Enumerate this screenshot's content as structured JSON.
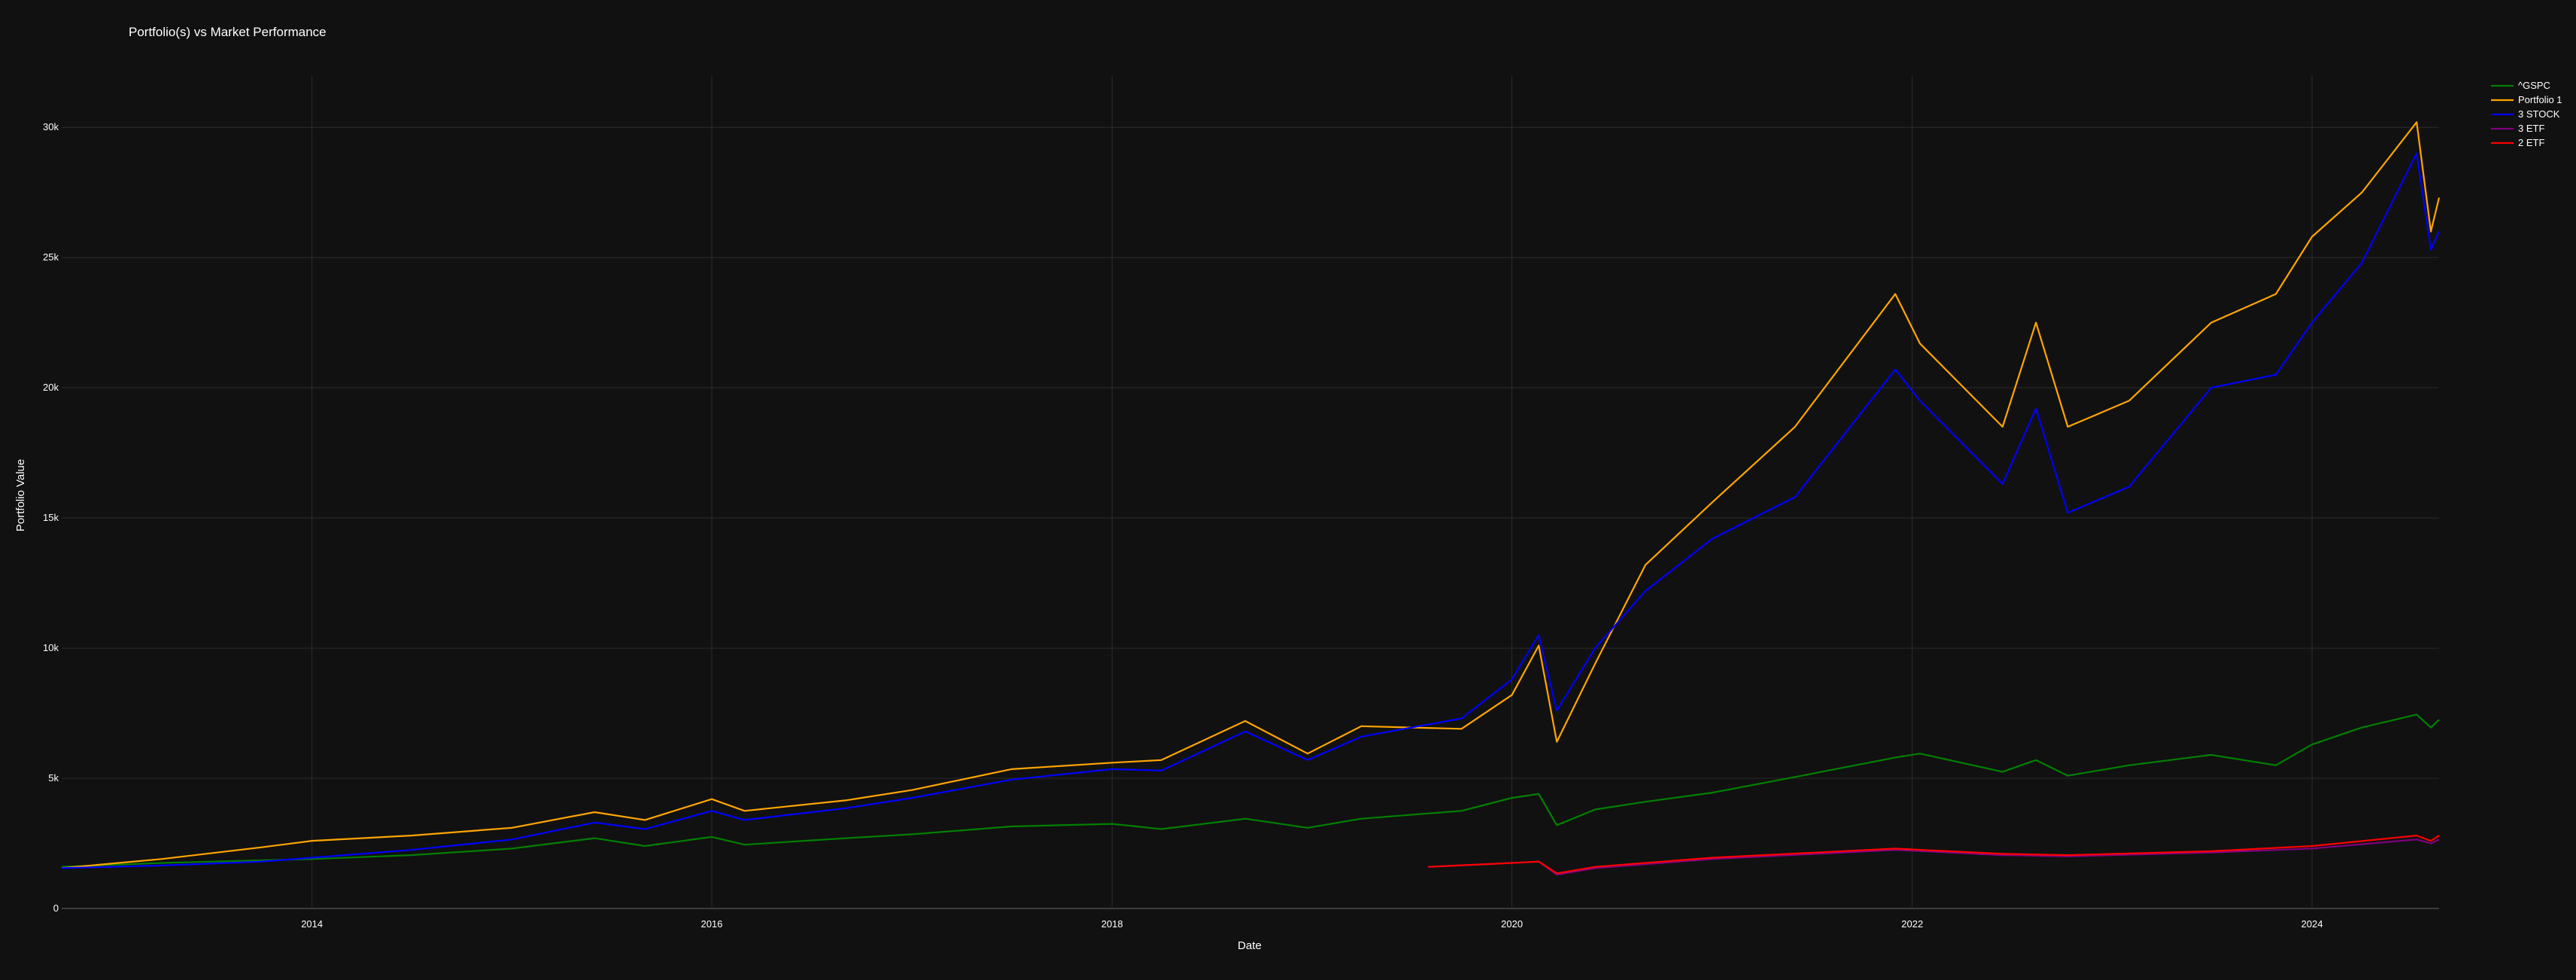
{
  "chart_data": {
    "type": "line",
    "title": "Portfolio(s) vs Market Performance",
    "xlabel": "Date",
    "ylabel": "Portfolio Value",
    "xlim": [
      "2012-10-01",
      "2024-08-20"
    ],
    "ylim": [
      0,
      32000
    ],
    "grid": true,
    "legend_position": "top-right",
    "x_ticks": [
      {
        "value": "2014-01-01",
        "label": "2014"
      },
      {
        "value": "2016-01-01",
        "label": "2016"
      },
      {
        "value": "2018-01-01",
        "label": "2018"
      },
      {
        "value": "2020-01-01",
        "label": "2020"
      },
      {
        "value": "2022-01-01",
        "label": "2022"
      },
      {
        "value": "2024-01-01",
        "label": "2024"
      }
    ],
    "y_ticks": [
      {
        "value": 0,
        "label": "0"
      },
      {
        "value": 5000,
        "label": "5k"
      },
      {
        "value": 10000,
        "label": "10k"
      },
      {
        "value": 15000,
        "label": "15k"
      },
      {
        "value": 20000,
        "label": "20k"
      },
      {
        "value": 25000,
        "label": "25k"
      },
      {
        "value": 30000,
        "label": "30k"
      }
    ],
    "series": [
      {
        "name": "^GSPC",
        "color": "#008000",
        "points": [
          [
            "2012-10-01",
            1600
          ],
          [
            "2013-04-01",
            1750
          ],
          [
            "2013-10-01",
            1850
          ],
          [
            "2014-01-01",
            1900
          ],
          [
            "2014-07-01",
            2050
          ],
          [
            "2015-01-01",
            2300
          ],
          [
            "2015-06-01",
            2700
          ],
          [
            "2015-09-01",
            2400
          ],
          [
            "2016-01-01",
            2750
          ],
          [
            "2016-03-01",
            2450
          ],
          [
            "2016-09-01",
            2700
          ],
          [
            "2017-01-01",
            2850
          ],
          [
            "2017-07-01",
            3150
          ],
          [
            "2018-01-01",
            3250
          ],
          [
            "2018-04-01",
            3050
          ],
          [
            "2018-09-01",
            3450
          ],
          [
            "2018-12-24",
            3100
          ],
          [
            "2019-04-01",
            3450
          ],
          [
            "2019-10-01",
            3750
          ],
          [
            "2020-01-01",
            4250
          ],
          [
            "2020-02-19",
            4400
          ],
          [
            "2020-03-23",
            3200
          ],
          [
            "2020-06-01",
            3800
          ],
          [
            "2020-09-01",
            4100
          ],
          [
            "2021-01-01",
            4450
          ],
          [
            "2021-06-01",
            5050
          ],
          [
            "2021-12-01",
            5800
          ],
          [
            "2022-01-15",
            5950
          ],
          [
            "2022-06-15",
            5250
          ],
          [
            "2022-08-15",
            5700
          ],
          [
            "2022-10-12",
            5100
          ],
          [
            "2023-02-01",
            5500
          ],
          [
            "2023-07-01",
            5900
          ],
          [
            "2023-10-27",
            5500
          ],
          [
            "2024-01-01",
            6300
          ],
          [
            "2024-04-01",
            6950
          ],
          [
            "2024-07-10",
            7450
          ],
          [
            "2024-08-05",
            6950
          ],
          [
            "2024-08-20",
            7250
          ]
        ]
      },
      {
        "name": "Portfolio 1",
        "color": "#ffa500",
        "points": [
          [
            "2012-10-01",
            1550
          ],
          [
            "2013-04-01",
            1900
          ],
          [
            "2013-10-01",
            2350
          ],
          [
            "2014-01-01",
            2600
          ],
          [
            "2014-07-01",
            2800
          ],
          [
            "2015-01-01",
            3100
          ],
          [
            "2015-06-01",
            3700
          ],
          [
            "2015-09-01",
            3400
          ],
          [
            "2016-01-01",
            4200
          ],
          [
            "2016-03-01",
            3750
          ],
          [
            "2016-09-01",
            4150
          ],
          [
            "2017-01-01",
            4550
          ],
          [
            "2017-07-01",
            5350
          ],
          [
            "2018-01-01",
            5600
          ],
          [
            "2018-04-01",
            5700
          ],
          [
            "2018-09-01",
            7200
          ],
          [
            "2018-12-24",
            5950
          ],
          [
            "2019-04-01",
            7000
          ],
          [
            "2019-10-01",
            6900
          ],
          [
            "2020-01-01",
            8200
          ],
          [
            "2020-02-19",
            10100
          ],
          [
            "2020-03-23",
            6400
          ],
          [
            "2020-06-01",
            9400
          ],
          [
            "2020-09-01",
            13200
          ],
          [
            "2021-01-01",
            15600
          ],
          [
            "2021-06-01",
            18500
          ],
          [
            "2021-12-01",
            23600
          ],
          [
            "2022-01-15",
            21700
          ],
          [
            "2022-06-15",
            18500
          ],
          [
            "2022-08-15",
            22500
          ],
          [
            "2022-10-12",
            18500
          ],
          [
            "2023-02-01",
            19500
          ],
          [
            "2023-07-01",
            22500
          ],
          [
            "2023-10-27",
            23600
          ],
          [
            "2024-01-01",
            25800
          ],
          [
            "2024-04-01",
            27500
          ],
          [
            "2024-07-10",
            30200
          ],
          [
            "2024-08-05",
            26000
          ],
          [
            "2024-08-20",
            27300
          ]
        ]
      },
      {
        "name": "3 STOCK",
        "color": "#0000ff",
        "points": [
          [
            "2012-10-01",
            1550
          ],
          [
            "2013-04-01",
            1650
          ],
          [
            "2013-10-01",
            1800
          ],
          [
            "2014-01-01",
            1950
          ],
          [
            "2014-07-01",
            2250
          ],
          [
            "2015-01-01",
            2650
          ],
          [
            "2015-06-01",
            3300
          ],
          [
            "2015-09-01",
            3050
          ],
          [
            "2016-01-01",
            3750
          ],
          [
            "2016-03-01",
            3400
          ],
          [
            "2016-09-01",
            3850
          ],
          [
            "2017-01-01",
            4250
          ],
          [
            "2017-07-01",
            4950
          ],
          [
            "2018-01-01",
            5350
          ],
          [
            "2018-04-01",
            5300
          ],
          [
            "2018-09-01",
            6800
          ],
          [
            "2018-12-24",
            5700
          ],
          [
            "2019-04-01",
            6600
          ],
          [
            "2019-10-01",
            7300
          ],
          [
            "2020-01-01",
            8800
          ],
          [
            "2020-02-19",
            10500
          ],
          [
            "2020-03-23",
            7600
          ],
          [
            "2020-06-01",
            10000
          ],
          [
            "2020-09-01",
            12200
          ],
          [
            "2021-01-01",
            14200
          ],
          [
            "2021-06-01",
            15800
          ],
          [
            "2021-12-01",
            20700
          ],
          [
            "2022-01-15",
            19500
          ],
          [
            "2022-06-15",
            16300
          ],
          [
            "2022-08-15",
            19200
          ],
          [
            "2022-10-12",
            15200
          ],
          [
            "2023-02-01",
            16200
          ],
          [
            "2023-07-01",
            20000
          ],
          [
            "2023-10-27",
            20500
          ],
          [
            "2024-01-01",
            22500
          ],
          [
            "2024-04-01",
            24800
          ],
          [
            "2024-07-10",
            29000
          ],
          [
            "2024-08-05",
            25300
          ],
          [
            "2024-08-20",
            26000
          ]
        ]
      },
      {
        "name": "3 ETF",
        "color": "#800080",
        "points": [
          [
            "2019-08-01",
            1600
          ],
          [
            "2020-01-01",
            1750
          ],
          [
            "2020-02-19",
            1800
          ],
          [
            "2020-03-23",
            1300
          ],
          [
            "2020-06-01",
            1550
          ],
          [
            "2021-01-01",
            1900
          ],
          [
            "2021-12-01",
            2250
          ],
          [
            "2022-06-15",
            2050
          ],
          [
            "2022-10-12",
            2000
          ],
          [
            "2023-07-01",
            2150
          ],
          [
            "2024-01-01",
            2300
          ],
          [
            "2024-07-10",
            2650
          ],
          [
            "2024-08-05",
            2500
          ],
          [
            "2024-08-20",
            2650
          ]
        ]
      },
      {
        "name": "2 ETF",
        "color": "#ff0000",
        "points": [
          [
            "2019-08-01",
            1600
          ],
          [
            "2020-01-01",
            1750
          ],
          [
            "2020-02-19",
            1800
          ],
          [
            "2020-03-23",
            1350
          ],
          [
            "2020-06-01",
            1600
          ],
          [
            "2021-01-01",
            1950
          ],
          [
            "2021-12-01",
            2300
          ],
          [
            "2022-06-15",
            2100
          ],
          [
            "2022-10-12",
            2050
          ],
          [
            "2023-07-01",
            2200
          ],
          [
            "2024-01-01",
            2400
          ],
          [
            "2024-07-10",
            2800
          ],
          [
            "2024-08-05",
            2600
          ],
          [
            "2024-08-20",
            2800
          ]
        ]
      }
    ]
  }
}
